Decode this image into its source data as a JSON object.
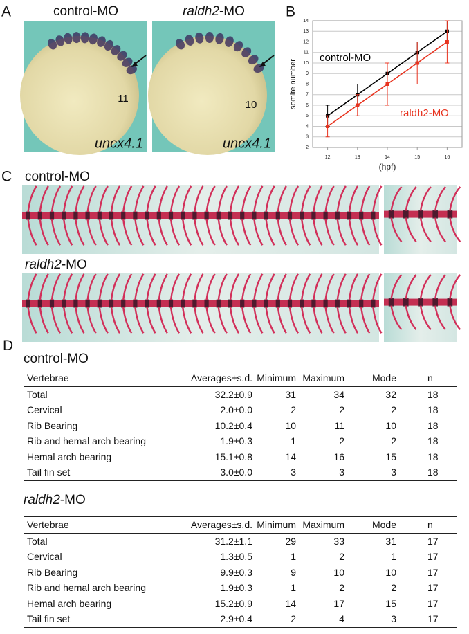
{
  "panel_a": {
    "label": "A",
    "images": [
      {
        "title": {
          "plain": "control-MO"
        },
        "count": 11,
        "probe": "uncx4.1"
      },
      {
        "title": {
          "italic": "raldh2",
          "plain": "-MO"
        },
        "count": 10,
        "probe": "uncx4.1"
      }
    ]
  },
  "chart_data": {
    "type": "line",
    "label": "B",
    "xlabel": "(hpf)",
    "ylabel": "somite number",
    "x": [
      12,
      13,
      14,
      15,
      16
    ],
    "xlim": [
      11.5,
      16.5
    ],
    "xticks": [
      12,
      13,
      14,
      15,
      16
    ],
    "ylim": [
      2,
      14
    ],
    "yticks": [
      2,
      3,
      4,
      5,
      6,
      7,
      8,
      9,
      10,
      11,
      12,
      13,
      14
    ],
    "grid": true,
    "series": [
      {
        "name": "control-MO",
        "color": "#000000",
        "values": [
          5,
          7,
          9,
          11,
          13
        ],
        "errors": [
          1,
          1,
          1,
          1,
          1
        ]
      },
      {
        "name": "raldh2-MO",
        "color": "#e8321e",
        "values": [
          4,
          6,
          8,
          10,
          12
        ],
        "errors": [
          1,
          1,
          2,
          2,
          2
        ]
      }
    ]
  },
  "panel_c": {
    "label": "C",
    "rows": [
      {
        "title": {
          "plain": "control-MO"
        }
      },
      {
        "title": {
          "italic": "raldh2",
          "plain": "-MO"
        }
      }
    ]
  },
  "panel_d": {
    "label": "D",
    "tables": [
      {
        "title": {
          "plain": "control-MO"
        },
        "columns": [
          "Vertebrae",
          "Averages±s.d.",
          "Minimum",
          "Maximum",
          "Mode",
          "n"
        ],
        "rows": [
          [
            "Total",
            "32.2±0.9",
            31,
            34,
            32,
            18
          ],
          [
            "Cervical",
            "2.0±0.0",
            2,
            2,
            2,
            18
          ],
          [
            "Rib Bearing",
            "10.2±0.4",
            10,
            11,
            10,
            18
          ],
          [
            "Rib and hemal arch bearing",
            "1.9±0.3",
            1,
            2,
            2,
            18
          ],
          [
            "Hemal arch bearing",
            "15.1±0.8",
            14,
            16,
            15,
            18
          ],
          [
            "Tail fin set",
            "3.0±0.0",
            3,
            3,
            3,
            18
          ]
        ]
      },
      {
        "title": {
          "italic": "raldh2",
          "plain": "-MO"
        },
        "columns": [
          "Vertebrae",
          "Averages±s.d.",
          "Minimum",
          "Maximum",
          "Mode",
          "n"
        ],
        "rows": [
          [
            "Total",
            "31.2±1.1",
            29,
            33,
            31,
            17
          ],
          [
            "Cervical",
            "1.3±0.5",
            1,
            2,
            1,
            17
          ],
          [
            "Rib Bearing",
            "9.9±0.3",
            9,
            10,
            10,
            17
          ],
          [
            "Rib and hemal arch bearing",
            "1.9±0.3",
            1,
            2,
            2,
            17
          ],
          [
            "Hemal arch bearing",
            "15.2±0.9",
            14,
            17,
            15,
            17
          ],
          [
            "Tail fin set",
            "2.9±0.4",
            2,
            4,
            3,
            17
          ]
        ]
      }
    ]
  }
}
